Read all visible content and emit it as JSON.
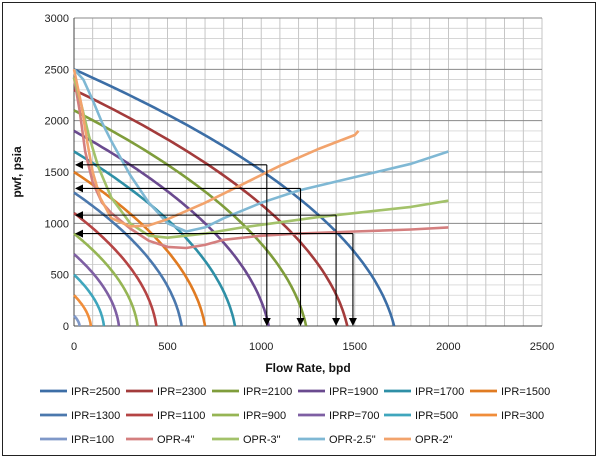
{
  "chart_data": {
    "type": "line",
    "xlabel": "Flow Rate, bpd",
    "ylabel": "pwf, psia",
    "xlim": [
      0,
      2500
    ],
    "ylim": [
      0,
      3000
    ],
    "x_ticks": [
      0,
      500,
      1000,
      1500,
      2000,
      2500
    ],
    "y_ticks": [
      0,
      500,
      1000,
      1500,
      2000,
      2500,
      3000
    ],
    "grid": true,
    "legend_position": "bottom",
    "ipr_series": [
      {
        "name": "IPR=2500",
        "pr": 2500,
        "qmax": 1710,
        "color": "#3c6ea6"
      },
      {
        "name": "IPR=2300",
        "pr": 2300,
        "qmax": 1460,
        "color": "#a33b3b"
      },
      {
        "name": "IPR=2100",
        "pr": 2100,
        "qmax": 1240,
        "color": "#7f9d3b"
      },
      {
        "name": "IPR=1900",
        "pr": 1900,
        "qmax": 1040,
        "color": "#6a4a8f"
      },
      {
        "name": "IPR=1700",
        "pr": 1700,
        "qmax": 860,
        "color": "#2e8fa6"
      },
      {
        "name": "IPR=1500",
        "pr": 1500,
        "qmax": 700,
        "color": "#e07b22"
      },
      {
        "name": "IPR=1300",
        "pr": 1300,
        "qmax": 575,
        "color": "#4b78ad"
      },
      {
        "name": "IPR=1100",
        "pr": 1100,
        "qmax": 440,
        "color": "#b54444"
      },
      {
        "name": "IPR=900",
        "pr": 900,
        "qmax": 340,
        "color": "#96b554"
      },
      {
        "name": "IPRP=700",
        "pr": 700,
        "qmax": 240,
        "color": "#7e5fa3"
      },
      {
        "name": "IPR=500",
        "pr": 500,
        "qmax": 160,
        "color": "#3fa6bd"
      },
      {
        "name": "IPR=300",
        "pr": 300,
        "qmax": 90,
        "color": "#f08d3a"
      },
      {
        "name": "IPR=100",
        "pr": 100,
        "qmax": 30,
        "color": "#7f98c8"
      }
    ],
    "opr_series": [
      {
        "name": "OPR-4\"",
        "color": "#d47f7f",
        "points": [
          [
            0,
            2420
          ],
          [
            30,
            2100
          ],
          [
            60,
            1700
          ],
          [
            100,
            1400
          ],
          [
            150,
            1200
          ],
          [
            200,
            1100
          ],
          [
            300,
            950
          ],
          [
            400,
            830
          ],
          [
            500,
            770
          ],
          [
            600,
            760
          ],
          [
            700,
            790
          ],
          [
            800,
            840
          ],
          [
            1000,
            880
          ],
          [
            1200,
            900
          ],
          [
            1500,
            920
          ],
          [
            1800,
            940
          ],
          [
            2000,
            960
          ]
        ]
      },
      {
        "name": "OPR-3\"",
        "color": "#a3c26a",
        "points": [
          [
            0,
            2420
          ],
          [
            40,
            2150
          ],
          [
            80,
            1850
          ],
          [
            130,
            1550
          ],
          [
            200,
            1250
          ],
          [
            300,
            1000
          ],
          [
            400,
            880
          ],
          [
            500,
            860
          ],
          [
            700,
            900
          ],
          [
            900,
            960
          ],
          [
            1100,
            1010
          ],
          [
            1300,
            1060
          ],
          [
            1500,
            1100
          ],
          [
            1800,
            1160
          ],
          [
            2000,
            1220
          ]
        ]
      },
      {
        "name": "OPR-2.5\"",
        "color": "#7fb8d4",
        "points": [
          [
            0,
            2500
          ],
          [
            50,
            2400
          ],
          [
            100,
            2200
          ],
          [
            150,
            1980
          ],
          [
            200,
            1800
          ],
          [
            300,
            1470
          ],
          [
            400,
            1200
          ],
          [
            500,
            1000
          ],
          [
            600,
            920
          ],
          [
            700,
            960
          ],
          [
            800,
            1050
          ],
          [
            1000,
            1200
          ],
          [
            1200,
            1320
          ],
          [
            1500,
            1450
          ],
          [
            1800,
            1580
          ],
          [
            2000,
            1700
          ]
        ]
      },
      {
        "name": "OPR-2\"",
        "color": "#f2a36c",
        "points": [
          [
            0,
            2500
          ],
          [
            40,
            2150
          ],
          [
            70,
            1800
          ],
          [
            100,
            1500
          ],
          [
            140,
            1250
          ],
          [
            200,
            1050
          ],
          [
            300,
            970
          ],
          [
            400,
            980
          ],
          [
            500,
            1040
          ],
          [
            700,
            1200
          ],
          [
            900,
            1380
          ],
          [
            1100,
            1560
          ],
          [
            1300,
            1720
          ],
          [
            1500,
            1860
          ],
          [
            1520,
            1900
          ]
        ]
      }
    ],
    "intersections": [
      {
        "q": 1030,
        "pwf": 1570
      },
      {
        "q": 1210,
        "pwf": 1340
      },
      {
        "q": 1400,
        "pwf": 1080
      },
      {
        "q": 1490,
        "pwf": 900
      }
    ],
    "legend": [
      "IPR=2500",
      "IPR=2300",
      "IPR=2100",
      "IPR=1900",
      "IPR=1700",
      "IPR=1500",
      "IPR=1300",
      "IPR=1100",
      "IPR=900",
      "IPRP=700",
      "IPR=500",
      "IPR=300",
      "IPR=100",
      "OPR-4\"",
      "OPR-3\"",
      "OPR-2.5\"",
      "OPR-2\""
    ]
  }
}
